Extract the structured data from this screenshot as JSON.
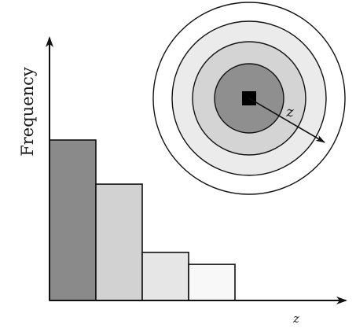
{
  "chart_data": {
    "type": "bar",
    "categories": [
      "",
      "",
      "",
      ""
    ],
    "values": [
      4,
      2.9,
      1.2,
      0.9
    ],
    "ylabel": "Frequency",
    "xlabel": "z",
    "bar_colors": [
      "#8a8a8a",
      "#d2d2d2",
      "#e6e6e6",
      "#f8f8f8"
    ]
  },
  "inset": {
    "ring_colors": [
      "#ffffff",
      "#ebebeb",
      "#d4d4d4",
      "#8f8f8f"
    ],
    "center_marker_color": "#000000",
    "radius_label": "z"
  }
}
